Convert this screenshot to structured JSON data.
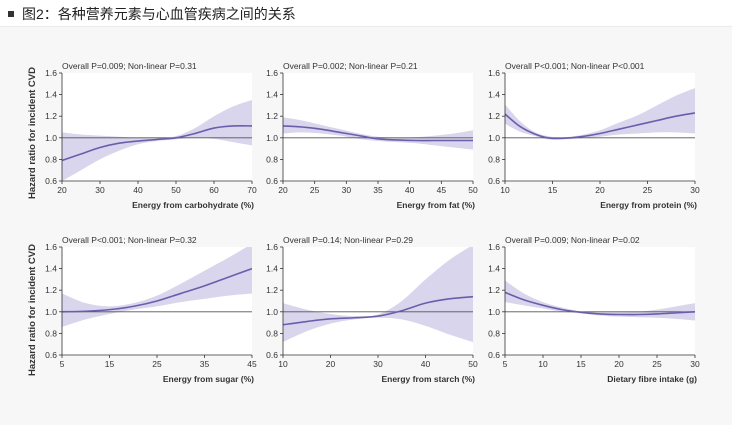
{
  "header": {
    "title": "图2：各种营养元素与心血管疾病之间的关系"
  },
  "y_axis_title": "Hazard ratio for incident CVD",
  "colors": {
    "line": "#6a5eac",
    "band": "#d9d5ec",
    "reference": "#555555",
    "axis": "#333333",
    "panel": "#ffffff"
  },
  "chart_data": [
    {
      "type": "line",
      "annotation": "Overall P=0.009; Non-linear P=0.31",
      "xlabel": "Energy from carbohydrate (%)",
      "ylabel": "Hazard ratio for incident CVD",
      "xlim": [
        20,
        70
      ],
      "ylim": [
        0.6,
        1.6
      ],
      "xticks": [
        20,
        30,
        40,
        50,
        60,
        70
      ],
      "yticks": [
        0.6,
        0.8,
        1.0,
        1.2,
        1.4,
        1.6
      ],
      "reference_line": 1.0,
      "x": [
        20,
        25,
        30,
        35,
        40,
        45,
        50,
        55,
        60,
        65,
        70
      ],
      "y": [
        0.79,
        0.85,
        0.91,
        0.95,
        0.97,
        0.985,
        1.0,
        1.04,
        1.09,
        1.11,
        1.11
      ],
      "lower": [
        0.6,
        0.7,
        0.8,
        0.88,
        0.94,
        0.97,
        0.985,
        1.0,
        0.99,
        0.96,
        0.93
      ],
      "upper": [
        1.05,
        1.03,
        1.02,
        1.01,
        1.0,
        0.995,
        1.015,
        1.09,
        1.2,
        1.29,
        1.35
      ]
    },
    {
      "type": "line",
      "annotation": "Overall P=0.002; Non-linear P=0.21",
      "xlabel": "Energy from fat (%)",
      "ylabel": "Hazard ratio for incident CVD",
      "xlim": [
        20,
        50
      ],
      "ylim": [
        0.6,
        1.6
      ],
      "xticks": [
        20,
        25,
        30,
        35,
        40,
        45,
        50
      ],
      "yticks": [
        0.6,
        0.8,
        1.0,
        1.2,
        1.4,
        1.6
      ],
      "reference_line": 1.0,
      "x": [
        20,
        23,
        26,
        29,
        32,
        35,
        38,
        41,
        44,
        47,
        50
      ],
      "y": [
        1.11,
        1.1,
        1.08,
        1.05,
        1.02,
        0.99,
        0.98,
        0.975,
        0.975,
        0.975,
        0.975
      ],
      "lower": [
        1.04,
        1.05,
        1.04,
        1.02,
        0.99,
        0.97,
        0.96,
        0.95,
        0.93,
        0.91,
        0.89
      ],
      "upper": [
        1.19,
        1.16,
        1.12,
        1.08,
        1.04,
        1.01,
        1.0,
        1.005,
        1.02,
        1.04,
        1.07
      ]
    },
    {
      "type": "line",
      "annotation": "Overall P<0.001; Non-linear P<0.001",
      "xlabel": "Energy from protein (%)",
      "ylabel": "Hazard ratio for incident CVD",
      "xlim": [
        10,
        30
      ],
      "ylim": [
        0.6,
        1.6
      ],
      "xticks": [
        10,
        15,
        20,
        25,
        30
      ],
      "yticks": [
        0.6,
        0.8,
        1.0,
        1.2,
        1.4,
        1.6
      ],
      "reference_line": 1.0,
      "x": [
        10,
        11.5,
        13,
        14.5,
        16,
        18,
        20,
        22,
        24,
        26,
        28,
        30
      ],
      "y": [
        1.22,
        1.11,
        1.04,
        1.0,
        0.995,
        1.01,
        1.04,
        1.08,
        1.12,
        1.16,
        1.2,
        1.23
      ],
      "lower": [
        1.13,
        1.06,
        1.02,
        0.985,
        0.985,
        0.995,
        1.01,
        1.03,
        1.04,
        1.05,
        1.05,
        1.04
      ],
      "upper": [
        1.31,
        1.16,
        1.06,
        1.015,
        1.005,
        1.025,
        1.07,
        1.14,
        1.21,
        1.3,
        1.39,
        1.46
      ]
    },
    {
      "type": "line",
      "annotation": "Overall P<0.001; Non-linear P=0.32",
      "xlabel": "Energy from sugar (%)",
      "ylabel": "Hazard ratio for incident CVD",
      "xlim": [
        5,
        45
      ],
      "ylim": [
        0.6,
        1.6
      ],
      "xticks": [
        5,
        15,
        25,
        35,
        45
      ],
      "yticks": [
        0.6,
        0.8,
        1.0,
        1.2,
        1.4,
        1.6
      ],
      "reference_line": 1.0,
      "x": [
        5,
        10,
        15,
        20,
        25,
        30,
        35,
        40,
        45
      ],
      "y": [
        1.0,
        1.005,
        1.02,
        1.05,
        1.1,
        1.17,
        1.24,
        1.32,
        1.4
      ],
      "lower": [
        0.86,
        0.93,
        0.98,
        1.02,
        1.05,
        1.09,
        1.12,
        1.15,
        1.17
      ],
      "upper": [
        1.17,
        1.08,
        1.05,
        1.08,
        1.15,
        1.26,
        1.38,
        1.5,
        1.63
      ]
    },
    {
      "type": "line",
      "annotation": "Overall P=0.14; Non-linear P=0.29",
      "xlabel": "Energy from starch (%)",
      "ylabel": "Hazard ratio for incident CVD",
      "xlim": [
        10,
        50
      ],
      "ylim": [
        0.6,
        1.6
      ],
      "xticks": [
        10,
        20,
        30,
        40,
        50
      ],
      "yticks": [
        0.6,
        0.8,
        1.0,
        1.2,
        1.4,
        1.6
      ],
      "reference_line": 1.0,
      "x": [
        10,
        15,
        20,
        25,
        30,
        35,
        40,
        45,
        50
      ],
      "y": [
        0.88,
        0.91,
        0.935,
        0.945,
        0.96,
        1.01,
        1.08,
        1.12,
        1.14
      ],
      "lower": [
        0.72,
        0.82,
        0.89,
        0.93,
        0.945,
        0.93,
        0.87,
        0.79,
        0.72
      ],
      "upper": [
        1.08,
        1.02,
        0.98,
        0.96,
        0.975,
        1.1,
        1.3,
        1.48,
        1.62
      ]
    },
    {
      "type": "line",
      "annotation": "Overall P=0.009; Non-linear P=0.02",
      "xlabel": "Dietary fibre intake (g)",
      "ylabel": "Hazard ratio for incident CVD",
      "xlim": [
        5,
        30
      ],
      "ylim": [
        0.6,
        1.6
      ],
      "xticks": [
        5,
        10,
        15,
        20,
        25,
        30
      ],
      "yticks": [
        0.6,
        0.8,
        1.0,
        1.2,
        1.4,
        1.6
      ],
      "reference_line": 1.0,
      "x": [
        5,
        7.5,
        10,
        12.5,
        15,
        17.5,
        20,
        22.5,
        25,
        27.5,
        30
      ],
      "y": [
        1.18,
        1.11,
        1.06,
        1.02,
        0.995,
        0.98,
        0.975,
        0.975,
        0.98,
        0.99,
        1.0
      ],
      "lower": [
        1.09,
        1.06,
        1.03,
        1.0,
        0.985,
        0.965,
        0.955,
        0.95,
        0.945,
        0.935,
        0.92
      ],
      "upper": [
        1.29,
        1.17,
        1.09,
        1.04,
        1.005,
        0.995,
        0.995,
        1.0,
        1.02,
        1.05,
        1.08
      ]
    }
  ]
}
